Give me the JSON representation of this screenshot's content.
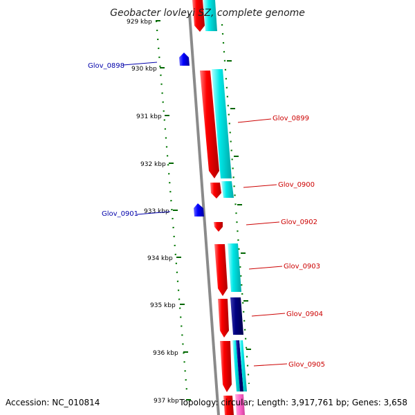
{
  "title": "Geobacter lovleyi SZ, complete genome",
  "footer": {
    "accession": "Accession: NC_010814",
    "topology": "Topology: circular; Length: 3,917,761 bp; Genes: 3,658"
  },
  "ticks": [
    "929 kbp",
    "930 kbp",
    "931 kbp",
    "932 kbp",
    "933 kbp",
    "934 kbp",
    "935 kbp",
    "936 kbp",
    "937 kbp"
  ],
  "gene_labels": [
    {
      "text": "Glov_0898",
      "strand": "reverse"
    },
    {
      "text": "Glov_0899",
      "strand": "forward"
    },
    {
      "text": "Glov_0900",
      "strand": "forward"
    },
    {
      "text": "Glov_0901",
      "strand": "reverse"
    },
    {
      "text": "Glov_0902",
      "strand": "forward"
    },
    {
      "text": "Glov_0903",
      "strand": "forward"
    },
    {
      "text": "Glov_0904",
      "strand": "forward"
    },
    {
      "text": "Glov_0905",
      "strand": "forward"
    }
  ],
  "colors": {
    "forward_cds": "#ff0000",
    "reverse_cds": "#0000ff",
    "label_forward": "#cc0000",
    "label_reverse": "#0000aa",
    "cog_cyan": "#00e5e5",
    "cog_navy": "#000080",
    "cog_pink": "#ff66cc",
    "backbone": "#888888",
    "gc_dots": "#007700"
  }
}
